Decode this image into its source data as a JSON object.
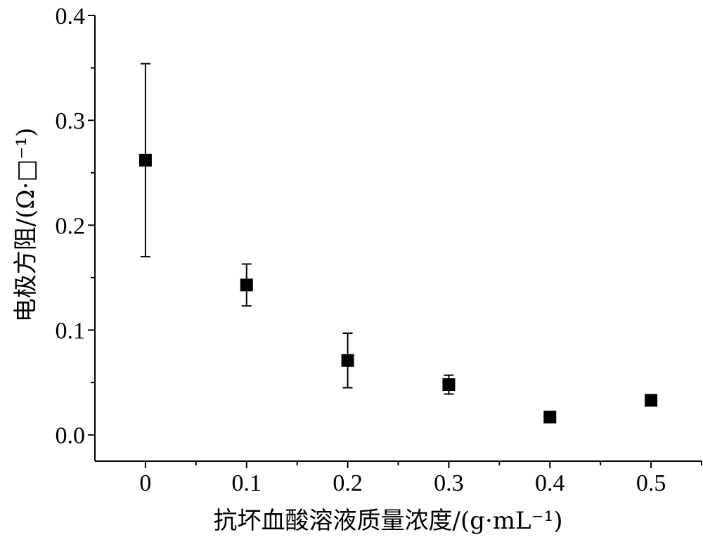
{
  "chart_data": {
    "type": "scatter",
    "xlabel": "抗坏血酸溶液质量浓度/(g·mL⁻¹)",
    "ylabel": "电极方阻/(Ω·□⁻¹)",
    "xlim": [
      -0.05,
      0.55
    ],
    "ylim": [
      -0.025,
      0.4
    ],
    "x_ticks": [
      0,
      0.1,
      0.2,
      0.3,
      0.4,
      0.5
    ],
    "x_tick_labels": [
      "0",
      "0.1",
      "0.2",
      "0.3",
      "0.4",
      "0.5"
    ],
    "y_ticks": [
      0.0,
      0.1,
      0.2,
      0.3,
      0.4
    ],
    "y_tick_labels": [
      "0.0",
      "0.1",
      "0.2",
      "0.3",
      "0.4"
    ],
    "x_minor_step": 0.05,
    "y_minor_step": 0.05,
    "grid": false,
    "marker": "square",
    "marker_color": "#000000",
    "series": [
      {
        "x": [
          0,
          0.1,
          0.2,
          0.3,
          0.4,
          0.5
        ],
        "y": [
          0.262,
          0.143,
          0.071,
          0.048,
          0.017,
          0.033
        ],
        "error": [
          0.092,
          0.02,
          0.026,
          0.009,
          0.003,
          0.003
        ]
      }
    ]
  }
}
